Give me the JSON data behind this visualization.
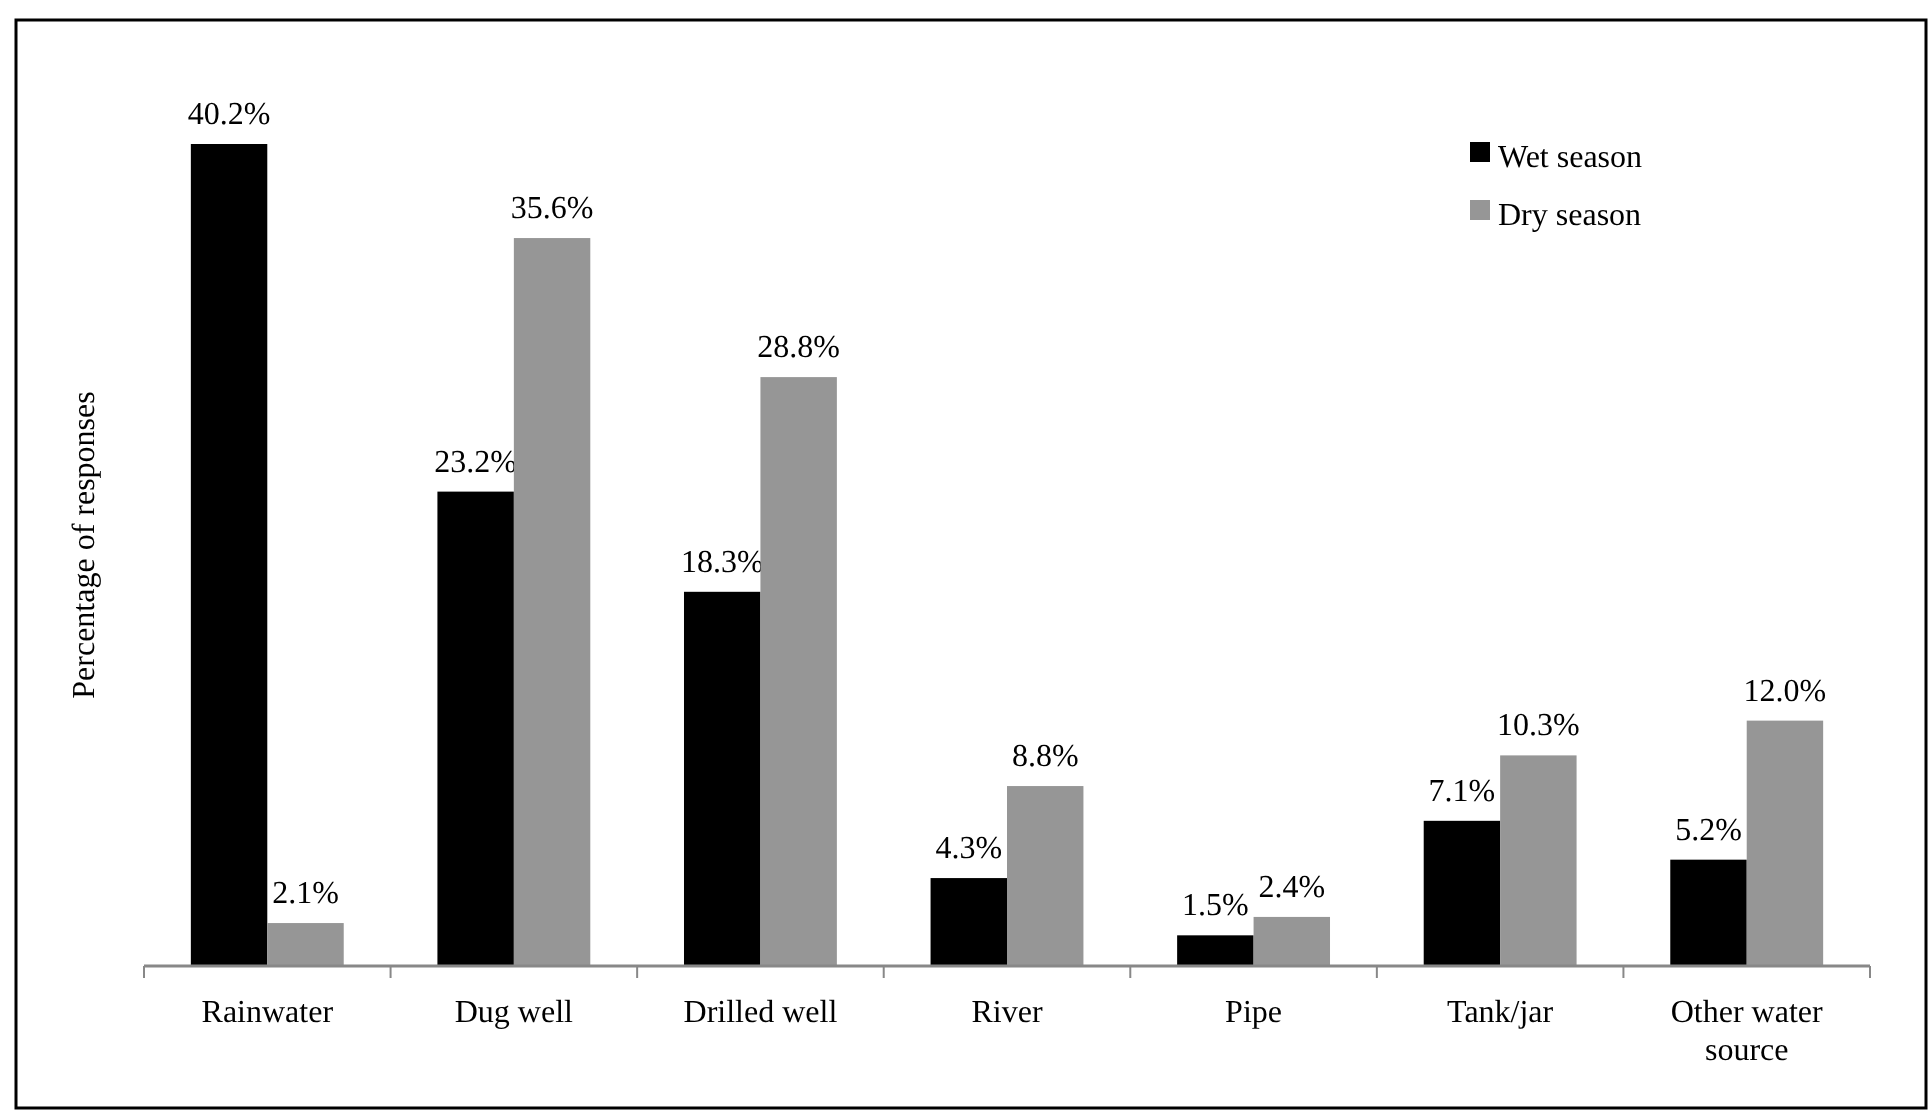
{
  "chart_data": {
    "type": "bar",
    "ylabel": "Percentage of responses",
    "categories": [
      "Rainwater",
      "Dug well",
      "Drilled well",
      "River",
      "Pipe",
      "Tank/jar",
      "Other water source"
    ],
    "series": [
      {
        "name": "Wet season",
        "color": "#000000",
        "values": [
          40.2,
          23.2,
          18.3,
          4.3,
          1.5,
          7.1,
          5.2
        ],
        "value_labels": [
          "40.2%",
          "23.2%",
          "18.3%",
          "4.3%",
          "1.5%",
          "7.1%",
          "5.2%"
        ]
      },
      {
        "name": "Dry season",
        "color": "#969696",
        "values": [
          2.1,
          35.6,
          28.8,
          8.8,
          2.4,
          10.3,
          12.0
        ],
        "value_labels": [
          "2.1%",
          "35.6%",
          "28.8%",
          "8.8%",
          "2.4%",
          "10.3%",
          "12.0%"
        ]
      }
    ],
    "legend": "top right"
  }
}
